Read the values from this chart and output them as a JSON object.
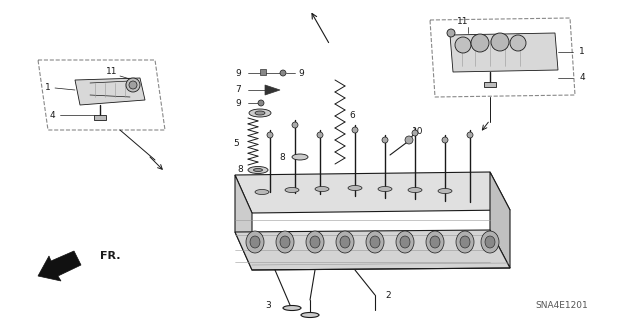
{
  "bg_color": "#ffffff",
  "diagram_id": "SNA4E1201",
  "fr_label": "FR.",
  "line_color": "#1a1a1a",
  "text_color": "#1a1a1a",
  "gray1": "#bbbbbb",
  "gray2": "#888888",
  "gray3": "#555555",
  "font_size": 6.5,
  "fig_w": 6.4,
  "fig_h": 3.19,
  "dpi": 100
}
